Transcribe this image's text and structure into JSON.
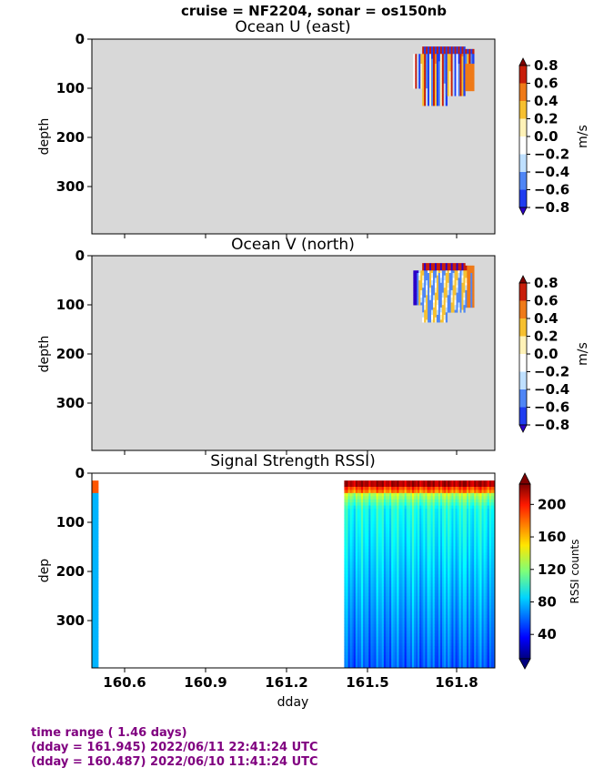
{
  "suptitle": "cruise = NF2204,  sonar = os150nb",
  "colors": {
    "panel_bg": "#d8d8d8",
    "footer_text": "#800080"
  },
  "panels": [
    {
      "title": "Ocean U (east)",
      "ylabel": "depth",
      "yticks": [
        "0",
        "100",
        "200",
        "300"
      ],
      "colorbar": {
        "label": "m/s",
        "ticks": [
          "0.8",
          "0.6",
          "0.4",
          "0.2",
          "0.0",
          "−0.2",
          "−0.4",
          "−0.6",
          "−0.8"
        ]
      }
    },
    {
      "title": "Ocean V (north)",
      "ylabel": "depth",
      "yticks": [
        "0",
        "100",
        "200",
        "300"
      ],
      "colorbar": {
        "label": "m/s",
        "ticks": [
          "0.8",
          "0.6",
          "0.4",
          "0.2",
          "0.0",
          "−0.2",
          "−0.4",
          "−0.6",
          "−0.8"
        ]
      }
    },
    {
      "title": "Signal Strength RSSI)",
      "ylabel": "dep",
      "yticks": [
        "0",
        "100",
        "200",
        "300"
      ],
      "xlabel": "dday",
      "xticks": [
        "160.6",
        "160.9",
        "161.2",
        "161.5",
        "161.8"
      ],
      "colorbar": {
        "label": "RSSI counts",
        "ticks": [
          "200",
          "160",
          "120",
          "80",
          "40"
        ]
      }
    }
  ],
  "footer": {
    "line1": "time range ( 1.46 days)",
    "line2": "(dday = 161.945) 2022/06/11 22:41:24 UTC",
    "line3": "(dday = 160.487) 2022/06/10 11:41:24 UTC"
  },
  "chart_data": [
    {
      "type": "heatmap",
      "title": "Ocean U (east)",
      "xlabel": "",
      "ylabel": "depth",
      "xlim": [
        160.487,
        161.945
      ],
      "ylim": [
        395,
        0
      ],
      "colorbar_label": "m/s",
      "clim": [
        -0.8,
        0.8
      ],
      "data_extent": {
        "x": [
          161.65,
          161.87
        ],
        "y": [
          15,
          135
        ]
      }
    },
    {
      "type": "heatmap",
      "title": "Ocean V (north)",
      "xlabel": "",
      "ylabel": "depth",
      "xlim": [
        160.487,
        161.945
      ],
      "ylim": [
        395,
        0
      ],
      "colorbar_label": "m/s",
      "clim": [
        -0.8,
        0.8
      ],
      "data_extent": {
        "x": [
          161.65,
          161.87
        ],
        "y": [
          15,
          135
        ]
      }
    },
    {
      "type": "heatmap",
      "title": "Signal Strength RSSI)",
      "xlabel": "dday",
      "ylabel": "dep",
      "xlim": [
        160.487,
        161.945
      ],
      "ylim": [
        395,
        0
      ],
      "colorbar_label": "RSSI counts",
      "clim": [
        10,
        225
      ],
      "data_extent": {
        "x": [
          [
            160.487,
            160.51
          ],
          [
            161.4,
            161.945
          ]
        ],
        "y": [
          15,
          395
        ]
      }
    }
  ]
}
